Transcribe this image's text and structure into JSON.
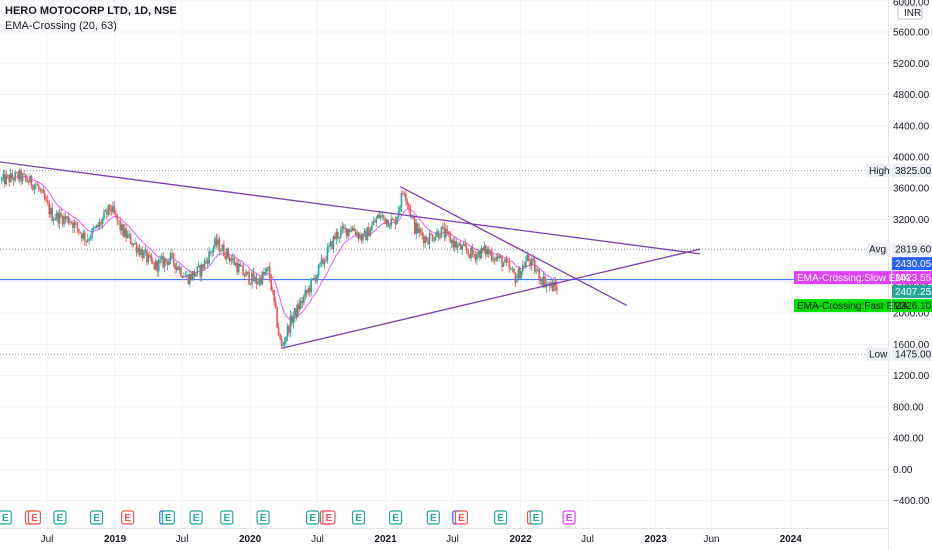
{
  "header": {
    "title": "HERO MOTOCORP LTD, 1D, NSE",
    "indicator": "EMA-Crossing (20, 63)"
  },
  "colors": {
    "grid": "#f0f3fa",
    "up": "#26a69a",
    "down": "#ef5350",
    "slow_ema": "#e040fb",
    "fast_ema": "#00e000",
    "trendline": "#7b3fb0",
    "last_price": "#2962ff"
  },
  "chart_data": {
    "type": "candlestick",
    "symbol": "HERO MOTOCORP LTD",
    "interval": "1D",
    "exchange": "NSE",
    "currency": "INR",
    "y_ticks": [
      6000,
      5600,
      5200,
      4800,
      4400,
      4000,
      3600,
      3200,
      2800,
      2400,
      2000,
      1600,
      1200,
      800,
      400,
      0,
      -400
    ],
    "y_tick_labels": [
      "6000.00",
      "5600.00",
      "5200.00",
      "4800.00",
      "4400.00",
      "4000.00",
      "3600.00",
      "3200.00",
      "2800.00",
      "2400.00",
      "2000.00",
      "1600.00",
      "1200.00",
      "800.00",
      "400.00",
      "0.00",
      "−400.00"
    ],
    "x_ticks": [
      {
        "label": "Jul",
        "date": "2018-07-01"
      },
      {
        "label": "2019",
        "date": "2019-01-01"
      },
      {
        "label": "Jul",
        "date": "2019-07-01"
      },
      {
        "label": "2020",
        "date": "2020-01-01"
      },
      {
        "label": "Jul",
        "date": "2020-07-01"
      },
      {
        "label": "2021",
        "date": "2021-01-01"
      },
      {
        "label": "Jul",
        "date": "2021-07-01"
      },
      {
        "label": "2022",
        "date": "2022-01-01"
      },
      {
        "label": "Jul",
        "date": "2022-07-01"
      },
      {
        "label": "2023",
        "date": "2023-01-01"
      },
      {
        "label": "Jun",
        "date": "2023-06-01"
      },
      {
        "label": "2024",
        "date": "2024-01-01"
      }
    ],
    "price_path": [
      [
        "2018-03-01",
        3700
      ],
      [
        "2018-04-15",
        3750
      ],
      [
        "2018-06-01",
        3650
      ],
      [
        "2018-07-15",
        3250
      ],
      [
        "2018-09-01",
        3200
      ],
      [
        "2018-10-15",
        2950
      ],
      [
        "2018-11-15",
        3100
      ],
      [
        "2018-12-20",
        3350
      ],
      [
        "2019-01-20",
        3050
      ],
      [
        "2019-03-01",
        2850
      ],
      [
        "2019-04-15",
        2600
      ],
      [
        "2019-06-01",
        2700
      ],
      [
        "2019-07-15",
        2450
      ],
      [
        "2019-08-20",
        2550
      ],
      [
        "2019-09-30",
        2900
      ],
      [
        "2019-11-01",
        2750
      ],
      [
        "2019-12-15",
        2500
      ],
      [
        "2020-01-20",
        2400
      ],
      [
        "2020-02-20",
        2550
      ],
      [
        "2020-03-25",
        1550
      ],
      [
        "2020-04-20",
        1900
      ],
      [
        "2020-06-01",
        2250
      ],
      [
        "2020-07-15",
        2650
      ],
      [
        "2020-08-20",
        3000
      ],
      [
        "2020-10-01",
        3100
      ],
      [
        "2020-11-01",
        2950
      ],
      [
        "2020-12-15",
        3250
      ],
      [
        "2021-01-25",
        3150
      ],
      [
        "2021-02-20",
        3600
      ],
      [
        "2021-03-20",
        3100
      ],
      [
        "2021-04-20",
        2950
      ],
      [
        "2021-06-01",
        3050
      ],
      [
        "2021-07-15",
        2850
      ],
      [
        "2021-08-25",
        2750
      ],
      [
        "2021-09-30",
        2800
      ],
      [
        "2021-11-15",
        2650
      ],
      [
        "2021-12-20",
        2450
      ],
      [
        "2022-01-20",
        2700
      ],
      [
        "2022-02-25",
        2450
      ],
      [
        "2022-03-20",
        2350
      ],
      [
        "2022-04-10",
        2326.1
      ]
    ],
    "high": {
      "label": "High",
      "value": 3825.0,
      "text": "3825.00"
    },
    "low": {
      "label": "Low",
      "value": 1475.0,
      "text": "1475.00"
    },
    "avg": {
      "label": "Avg",
      "value": 2819.6,
      "text": "2819.60"
    },
    "last_price": {
      "value": 2430.05,
      "text": "2430.05"
    },
    "slow_ema": {
      "label": "EMA-Crossing:Slow EMA",
      "value": 2423.55,
      "text": "2423.55"
    },
    "price_b": {
      "value": 2407.25,
      "text": "2407.25"
    },
    "fast_ema": {
      "label": "EMA-Crossing:Fast EMA",
      "value": 2326.1,
      "text": "2326.10"
    },
    "trendlines": [
      {
        "from": [
          "2018-02-01",
          3950
        ],
        "to": [
          "2023-05-01",
          2760
        ]
      },
      {
        "from": [
          "2021-02-10",
          3620
        ],
        "to": [
          "2022-10-15",
          2100
        ]
      },
      {
        "from": [
          "2020-03-25",
          1550
        ],
        "to": [
          "2023-05-01",
          2820
        ]
      }
    ],
    "events": [
      {
        "date": "2018-03-10",
        "type": "E",
        "color": "#26a69a"
      },
      {
        "date": "2018-05-20",
        "type": "E",
        "color": "#ef5350"
      },
      {
        "date": "2018-05-28",
        "type": "E",
        "color": "#ef5350"
      },
      {
        "date": "2018-08-05",
        "type": "E",
        "color": "#26a69a"
      },
      {
        "date": "2018-11-12",
        "type": "E",
        "color": "#26a69a"
      },
      {
        "date": "2019-02-04",
        "type": "E",
        "color": "#ef5350"
      },
      {
        "date": "2019-05-18",
        "type": "E",
        "color": "#2962ff"
      },
      {
        "date": "2019-05-25",
        "type": "E",
        "color": "#26a69a"
      },
      {
        "date": "2019-08-08",
        "type": "E",
        "color": "#26a69a"
      },
      {
        "date": "2019-10-30",
        "type": "E",
        "color": "#26a69a"
      },
      {
        "date": "2020-02-05",
        "type": "E",
        "color": "#26a69a"
      },
      {
        "date": "2020-06-18",
        "type": "E",
        "color": "#26a69a"
      },
      {
        "date": "2020-07-25",
        "type": "E",
        "color": "#ef5350"
      },
      {
        "date": "2020-08-01",
        "type": "E",
        "color": "#ef5350"
      },
      {
        "date": "2020-10-20",
        "type": "E",
        "color": "#26a69a"
      },
      {
        "date": "2021-01-28",
        "type": "E",
        "color": "#26a69a"
      },
      {
        "date": "2021-05-10",
        "type": "E",
        "color": "#26a69a"
      },
      {
        "date": "2021-07-18",
        "type": "E",
        "color": "#2962ff"
      },
      {
        "date": "2021-07-25",
        "type": "E",
        "color": "#ef5350"
      },
      {
        "date": "2021-11-08",
        "type": "E",
        "color": "#26a69a"
      },
      {
        "date": "2022-02-05",
        "type": "E",
        "color": "#ef5350"
      },
      {
        "date": "2022-02-12",
        "type": "E",
        "color": "#26a69a"
      },
      {
        "date": "2022-05-12",
        "type": "E",
        "color": "#e040fb"
      }
    ]
  }
}
